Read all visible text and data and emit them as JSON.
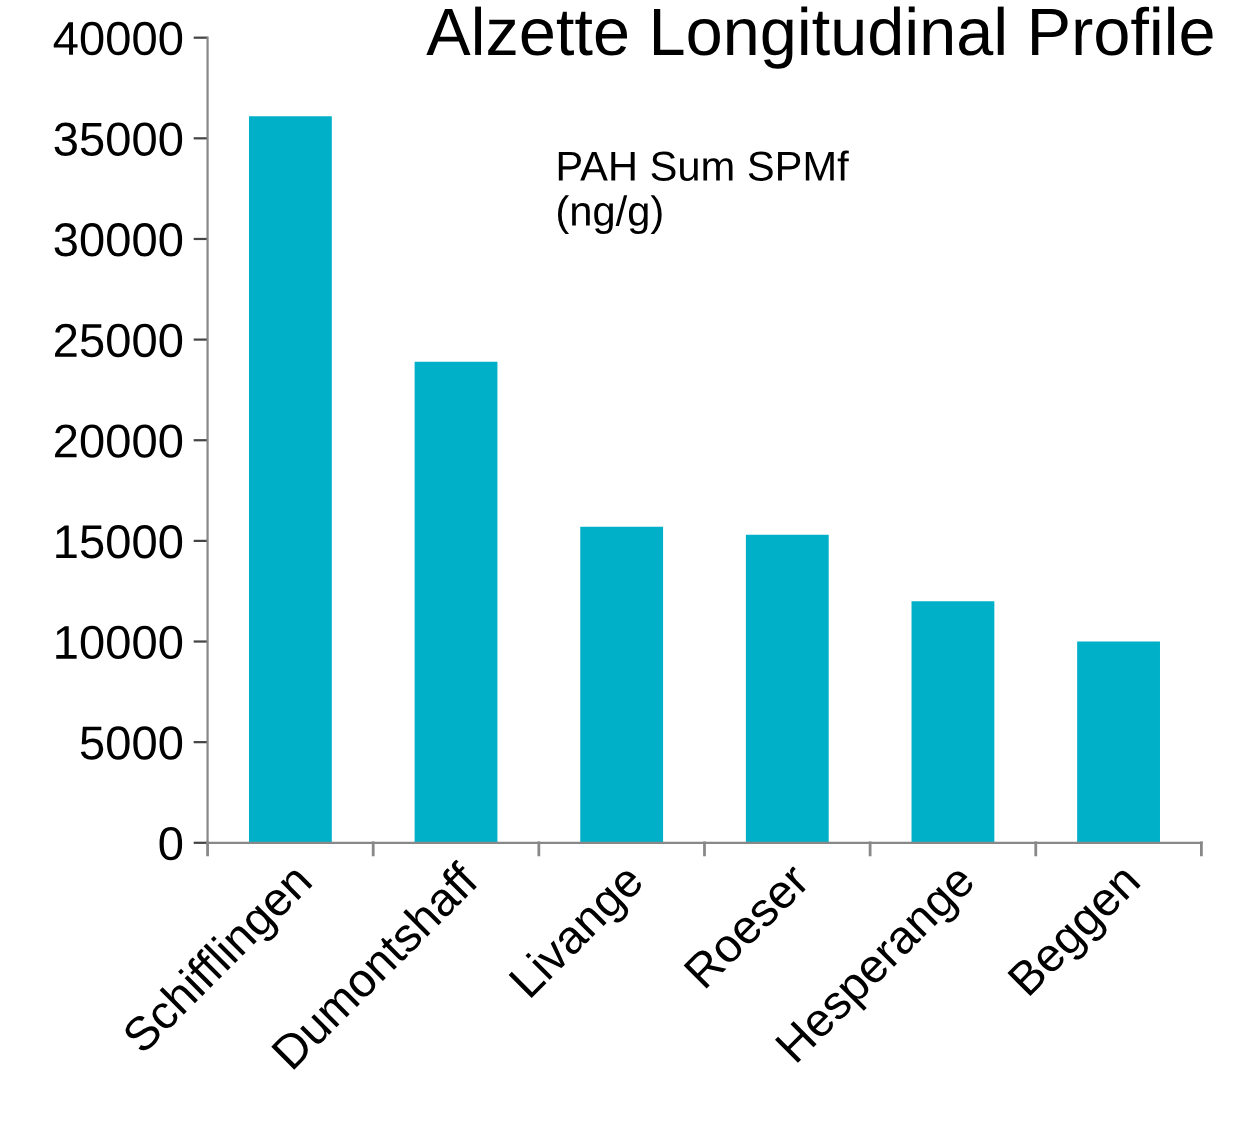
{
  "chart_data": {
    "type": "bar",
    "title": "Alzette Longitudinal Profile",
    "annotations": [
      "PAH Sum SPMf\n(ng/g)"
    ],
    "categories": [
      "Schifflingen",
      "Dumontshaff",
      "Livange",
      "Roeser",
      "Hesperange",
      "Beggen"
    ],
    "values": [
      36100,
      23900,
      15700,
      15300,
      12000,
      10000
    ],
    "color": "#00b0c8",
    "ylim": [
      0,
      40000
    ],
    "yticks": [
      0,
      5000,
      10000,
      15000,
      20000,
      25000,
      30000,
      35000,
      40000
    ],
    "grid": false,
    "legend": false
  }
}
